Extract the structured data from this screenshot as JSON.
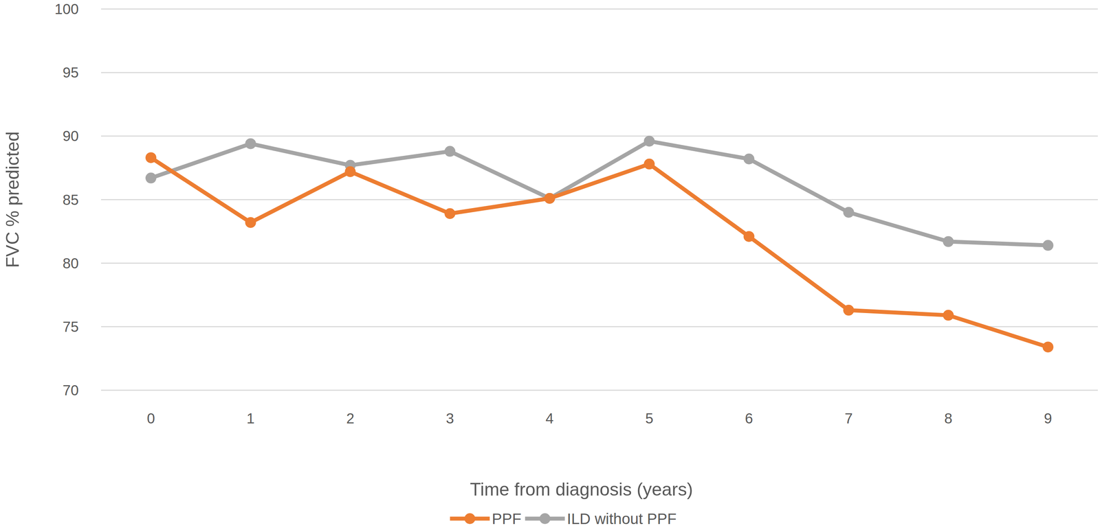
{
  "chart_data": {
    "type": "line",
    "x_label": "Time from diagnosis (years)",
    "y_label": "FVC % predicted",
    "categories": [
      "0",
      "1",
      "2",
      "3",
      "4",
      "5",
      "6",
      "7",
      "8",
      "9"
    ],
    "series": [
      {
        "name": "PPF",
        "color": "#ed7d31",
        "marker": "circle",
        "values": [
          88.3,
          83.2,
          87.2,
          83.9,
          85.1,
          87.8,
          82.1,
          76.3,
          75.9,
          73.4
        ]
      },
      {
        "name": "ILD without PPF",
        "color": "#a5a5a5",
        "marker": "circle",
        "values": [
          86.7,
          89.4,
          87.7,
          88.8,
          85.1,
          89.6,
          88.2,
          84.0,
          81.7,
          81.4
        ]
      }
    ],
    "ylim": [
      70,
      100
    ],
    "yticks": [
      70,
      75,
      80,
      85,
      90,
      95,
      100
    ],
    "grid": true,
    "legend": "bottom"
  }
}
